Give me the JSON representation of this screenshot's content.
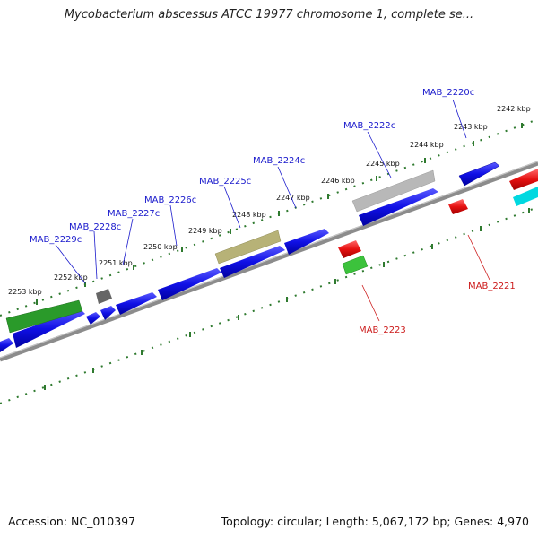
{
  "title": "Mycobacterium abscessus ATCC 19977 chromosome 1, complete se...",
  "footer": {
    "accession": "Accession: NC_010397",
    "stats": "Topology: circular; Length: 5,067,172 bp; Genes: 4,970"
  },
  "colors": {
    "axis": "#8c8c8c",
    "tick": "#2f7a2f",
    "plus_strand": "#1010e6",
    "minus_strand": "#e61010",
    "plus_label": "#1a1acc",
    "minus_label": "#cc1a1a",
    "highlight_green": "#2a9a2a",
    "highlight_olive": "#b7b277",
    "highlight_gray": "#b8b8b8",
    "dark_gray": "#666666",
    "cyan": "#00d8e0",
    "light_green": "#3cc23c"
  },
  "kbp_labels": [
    "2242 kbp",
    "2243 kbp",
    "2244 kbp",
    "2245 kbp",
    "2246 kbp",
    "2247 kbp",
    "2248 kbp",
    "2249 kbp",
    "2250 kbp",
    "2251 kbp",
    "2252 kbp",
    "2253 kbp"
  ],
  "gene_labels": {
    "plus": [
      "MAB_2220c",
      "MAB_2222c",
      "MAB_2224c",
      "MAB_2225c",
      "MAB_2226c",
      "MAB_2227c",
      "MAB_2228c",
      "MAB_2229c"
    ],
    "minus": [
      "MAB_2221",
      "MAB_2223"
    ]
  }
}
